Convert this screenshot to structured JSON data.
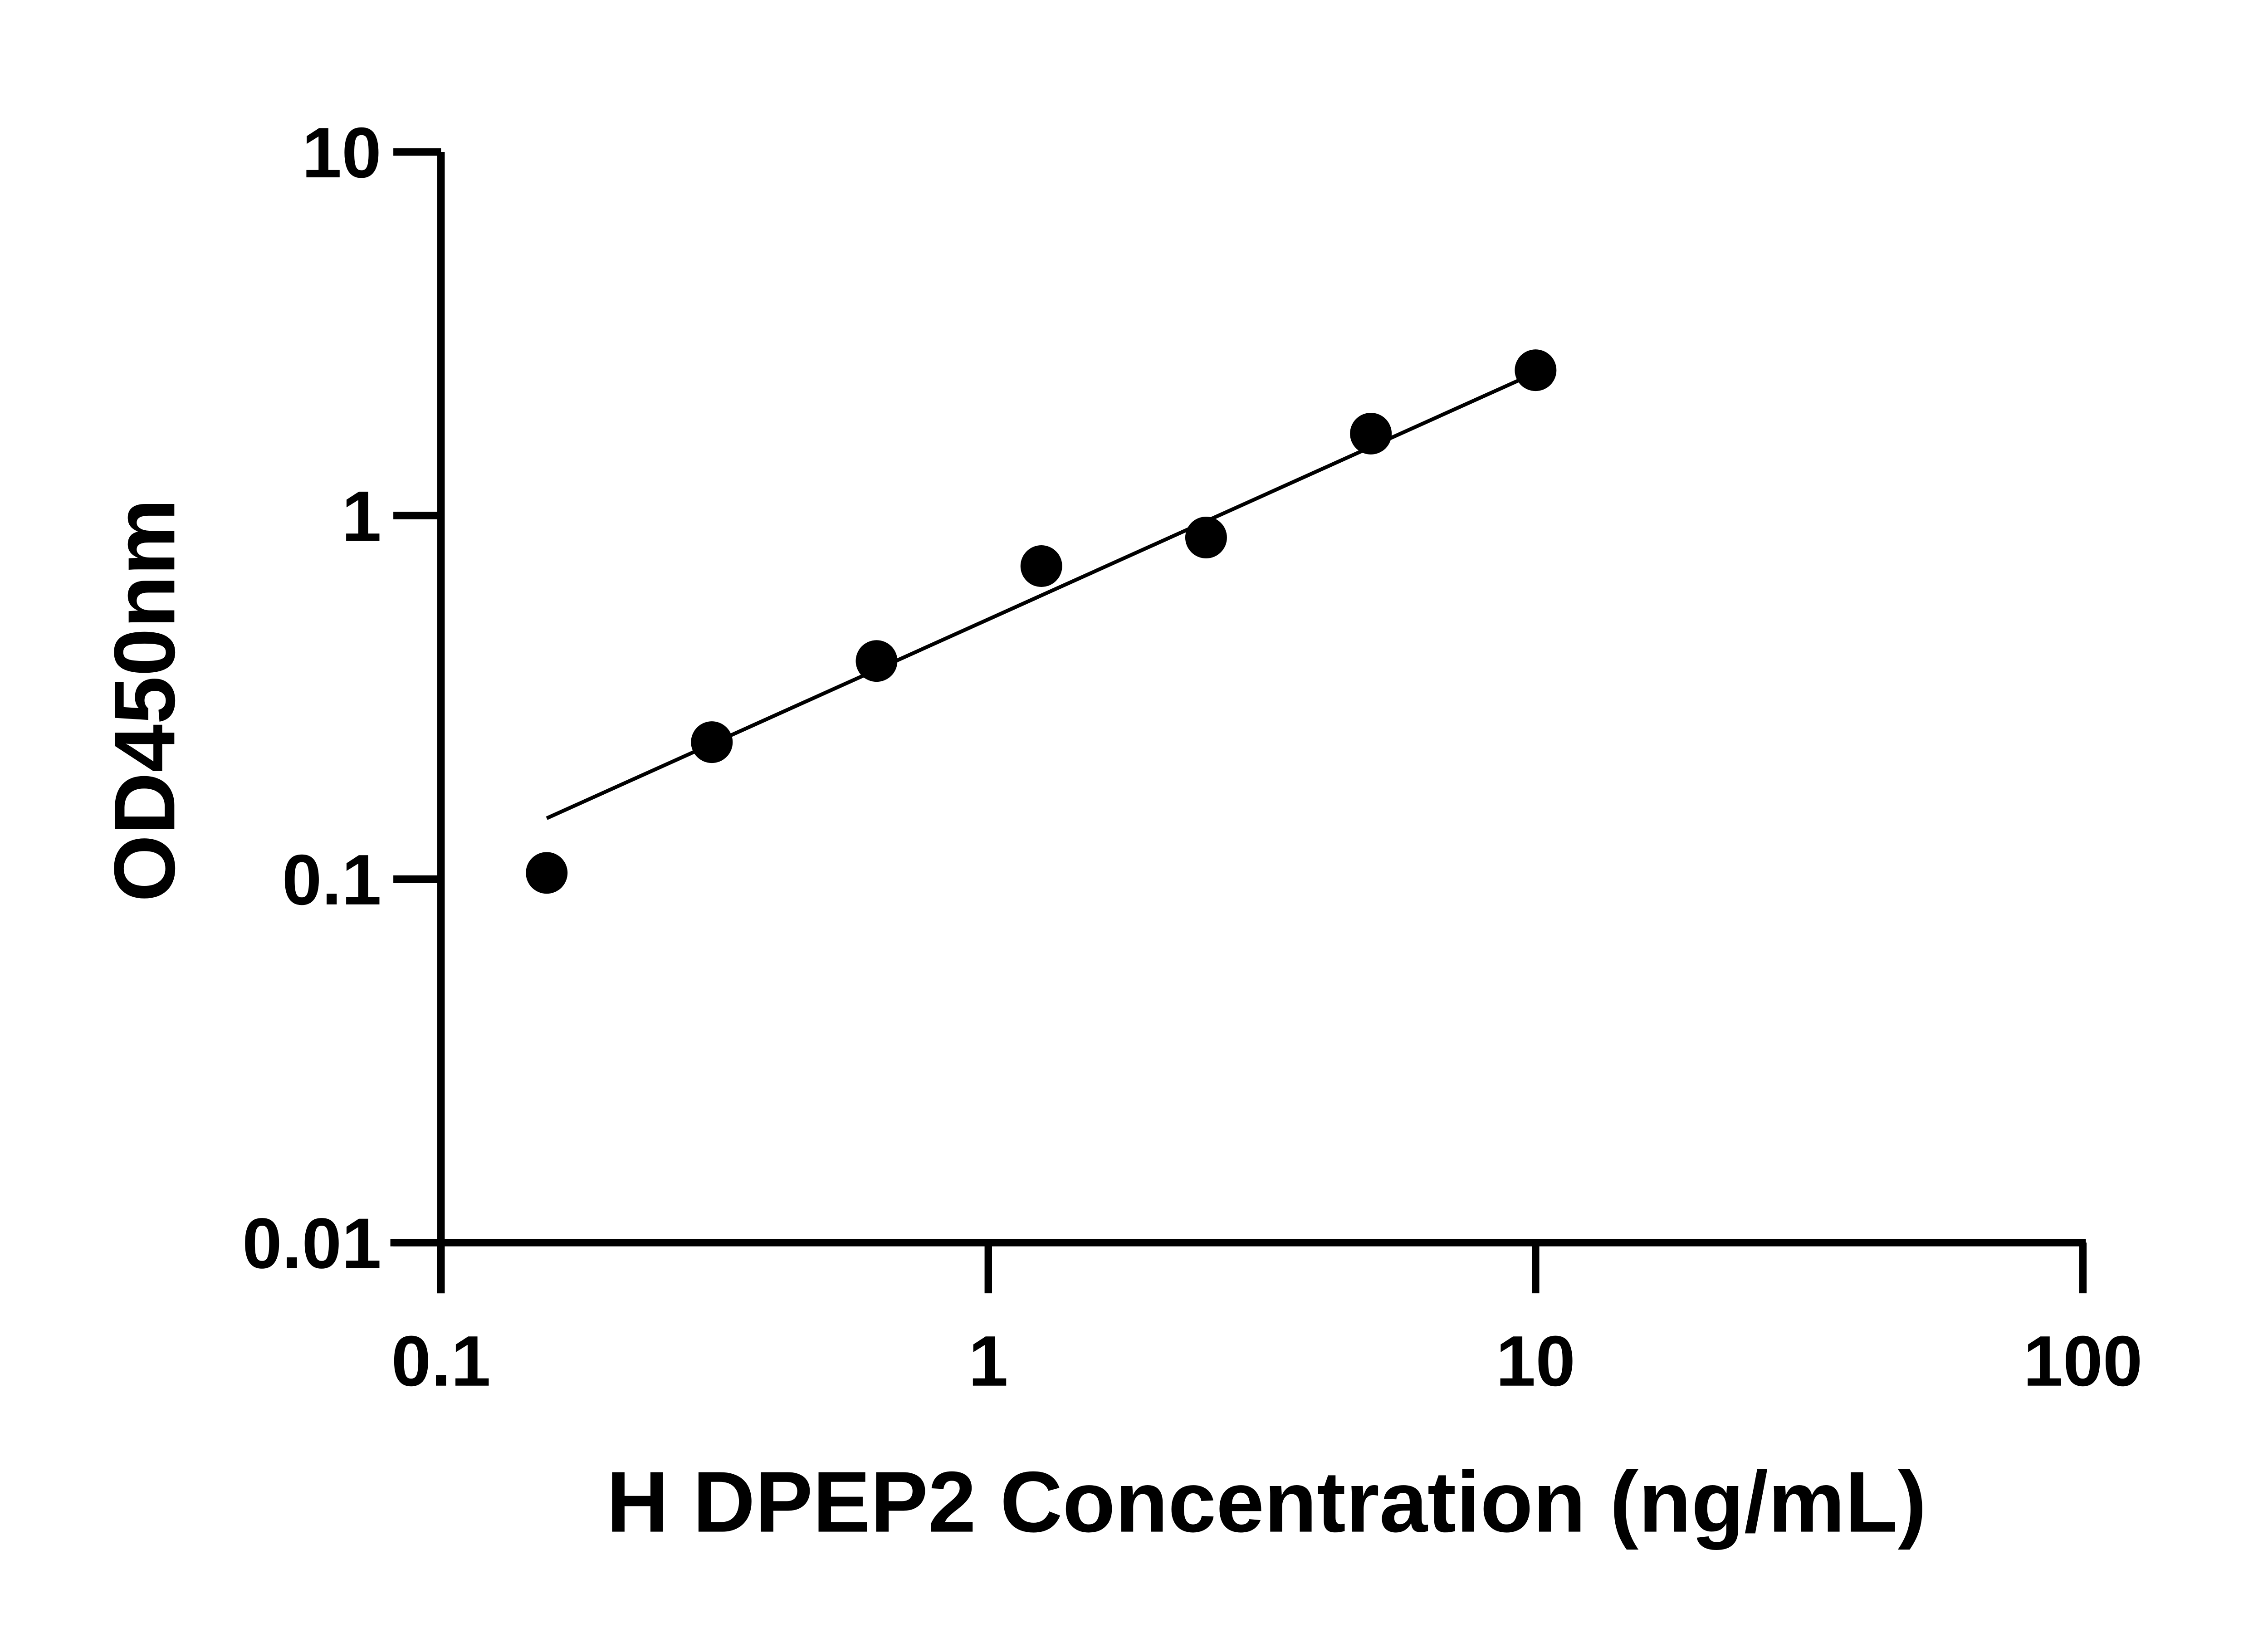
{
  "chart_data": {
    "type": "scatter",
    "title": "",
    "xlabel": "H DPEP2 Concentration (ng/mL)",
    "ylabel": "OD450nm",
    "x_scale": "log",
    "y_scale": "log",
    "xlim": [
      0.1,
      100
    ],
    "ylim": [
      0.01,
      10
    ],
    "x_ticks": [
      "0.1",
      "1",
      "10",
      "100"
    ],
    "y_ticks": [
      "0.01",
      "0.1",
      "1",
      "10"
    ],
    "grid": false,
    "legend": "none",
    "series": [
      {
        "x": [
          0.156,
          0.3125,
          0.625,
          1.25,
          2.5,
          5,
          10
        ],
        "y": [
          0.104,
          0.238,
          0.398,
          0.726,
          0.87,
          1.68,
          2.51
        ],
        "marker": "filled-circle",
        "color": "#000000"
      }
    ],
    "fit_line": {
      "x": [
        0.156,
        10
      ],
      "y": [
        0.147,
        2.47
      ],
      "color": "#000000"
    }
  }
}
